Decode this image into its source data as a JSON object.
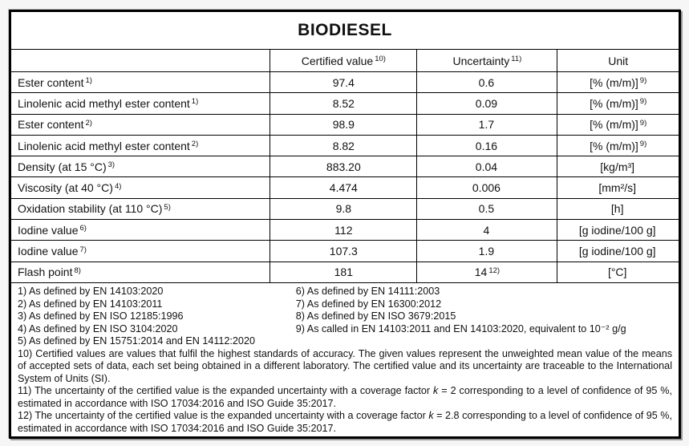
{
  "title": "BIODIESEL",
  "table": {
    "headers": {
      "property": "",
      "certified_value": {
        "text": "Certified value",
        "sup": "10)"
      },
      "uncertainty": {
        "text": "Uncertainty",
        "sup": "11)"
      },
      "unit": {
        "text": "Unit",
        "sup": ""
      }
    },
    "rows": [
      {
        "label": "Ester content",
        "label_sup": "1)",
        "value": "97.4",
        "uncertainty": "0.6",
        "uncertainty_sup": "",
        "unit": "[% (m/m)]",
        "unit_sup": "9)"
      },
      {
        "label": "Linolenic acid methyl ester content",
        "label_sup": "1)",
        "value": "8.52",
        "uncertainty": "0.09",
        "uncertainty_sup": "",
        "unit": "[% (m/m)]",
        "unit_sup": "9)"
      },
      {
        "label": "Ester content",
        "label_sup": "2)",
        "value": "98.9",
        "uncertainty": "1.7",
        "uncertainty_sup": "",
        "unit": "[% (m/m)]",
        "unit_sup": "9)"
      },
      {
        "label": "Linolenic acid methyl ester content",
        "label_sup": "2)",
        "value": "8.82",
        "uncertainty": "0.16",
        "uncertainty_sup": "",
        "unit": "[% (m/m)]",
        "unit_sup": "9)"
      },
      {
        "label": "Density (at 15 °C)",
        "label_sup": "3)",
        "value": "883.20",
        "uncertainty": "0.04",
        "uncertainty_sup": "",
        "unit": "[kg/m³]",
        "unit_sup": ""
      },
      {
        "label": "Viscosity (at 40 °C)",
        "label_sup": "4)",
        "value": "4.474",
        "uncertainty": "0.006",
        "uncertainty_sup": "",
        "unit": "[mm²/s]",
        "unit_sup": ""
      },
      {
        "label": "Oxidation stability (at 110 °C)",
        "label_sup": "5)",
        "value": "9.8",
        "uncertainty": "0.5",
        "uncertainty_sup": "",
        "unit": "[h]",
        "unit_sup": ""
      },
      {
        "label": "Iodine value",
        "label_sup": "6)",
        "value": "112",
        "uncertainty": "4",
        "uncertainty_sup": "",
        "unit": "[g iodine/100 g]",
        "unit_sup": ""
      },
      {
        "label": "Iodine value",
        "label_sup": "7)",
        "value": "107.3",
        "uncertainty": "1.9",
        "uncertainty_sup": "",
        "unit": "[g iodine/100 g]",
        "unit_sup": ""
      },
      {
        "label": "Flash point",
        "label_sup": "8)",
        "value": "181",
        "uncertainty": "14",
        "uncertainty_sup": "12)",
        "unit": "[°C]",
        "unit_sup": ""
      }
    ]
  },
  "footnotes": {
    "left": [
      "1) As defined by EN 14103:2020",
      "2) As defined by EN 14103:2011",
      "3) As defined by EN ISO 12185:1996",
      "4) As defined by EN ISO 3104:2020",
      "5) As defined by EN 15751:2014 and EN 14112:2020"
    ],
    "right": [
      "6) As defined by EN 14111:2003",
      "7) As defined by EN 16300:2012",
      "8) As defined by EN ISO 3679:2015",
      "9) As called in EN 14103:2011 and EN 14103:2020, equivalent to 10⁻² g/g"
    ],
    "fn10": "10) Certified values are values that fulfil the highest standards of accuracy. The given values represent the unweighted mean value of the means of accepted sets of data, each set being obtained in a different laboratory. The certified value and its uncertainty are traceable to the International System of Units (SI).",
    "fn11": {
      "pre": "11) The uncertainty of the certified value is the expanded uncertainty with a coverage factor ",
      "k": "k",
      "post": " = 2 corresponding to a level of confidence of 95 %, estimated in accordance with ISO 17034:2016 and ISO Guide 35:2017."
    },
    "fn12": {
      "pre": "12) The uncertainty of the certified value is the expanded uncertainty with a coverage factor ",
      "k": "k",
      "post": " = 2.8 corresponding to a level of confidence of 95 %, estimated in accordance with ISO 17034:2016 and ISO Guide 35:2017."
    }
  },
  "colors": {
    "border": "#000000",
    "page_background": "#f6f6f6",
    "table_background": "#ffffff",
    "text": "#111111"
  }
}
